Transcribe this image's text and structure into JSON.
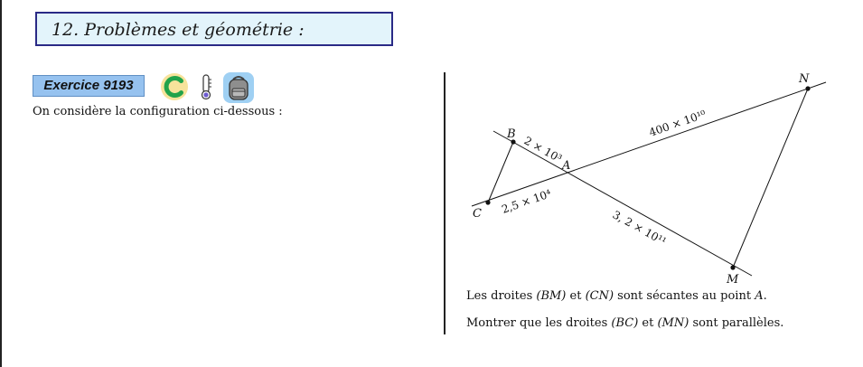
{
  "section": {
    "title": "12. Problèmes et géométrie :"
  },
  "exercise": {
    "label": "Exercice 9193"
  },
  "icons": [
    "calculator-c-icon",
    "thermometer-icon",
    "backpack-icon"
  ],
  "intro_text": "On considère la configuration ci-dessous :",
  "figure": {
    "points": {
      "B": "B",
      "A": "A",
      "C": "C",
      "N": "N",
      "M": "M"
    },
    "lengths": {
      "BA": "2 × 10³",
      "CA": "2,5 × 10⁴",
      "AN": "400 × 10¹⁰",
      "AM": "3, 2 × 10¹¹"
    }
  },
  "statement": {
    "line1": {
      "p1": "Les droites ",
      "l1": "(BM)",
      "p2": " et ",
      "l2": "(CN)",
      "p3": " sont sécantes au point ",
      "pt": "A",
      "p4": "."
    },
    "line2": {
      "p1": "Montrer que les droites ",
      "l1": "(BC)",
      "p2": " et ",
      "l2": "(MN)",
      "p3": " sont parallèles."
    }
  }
}
